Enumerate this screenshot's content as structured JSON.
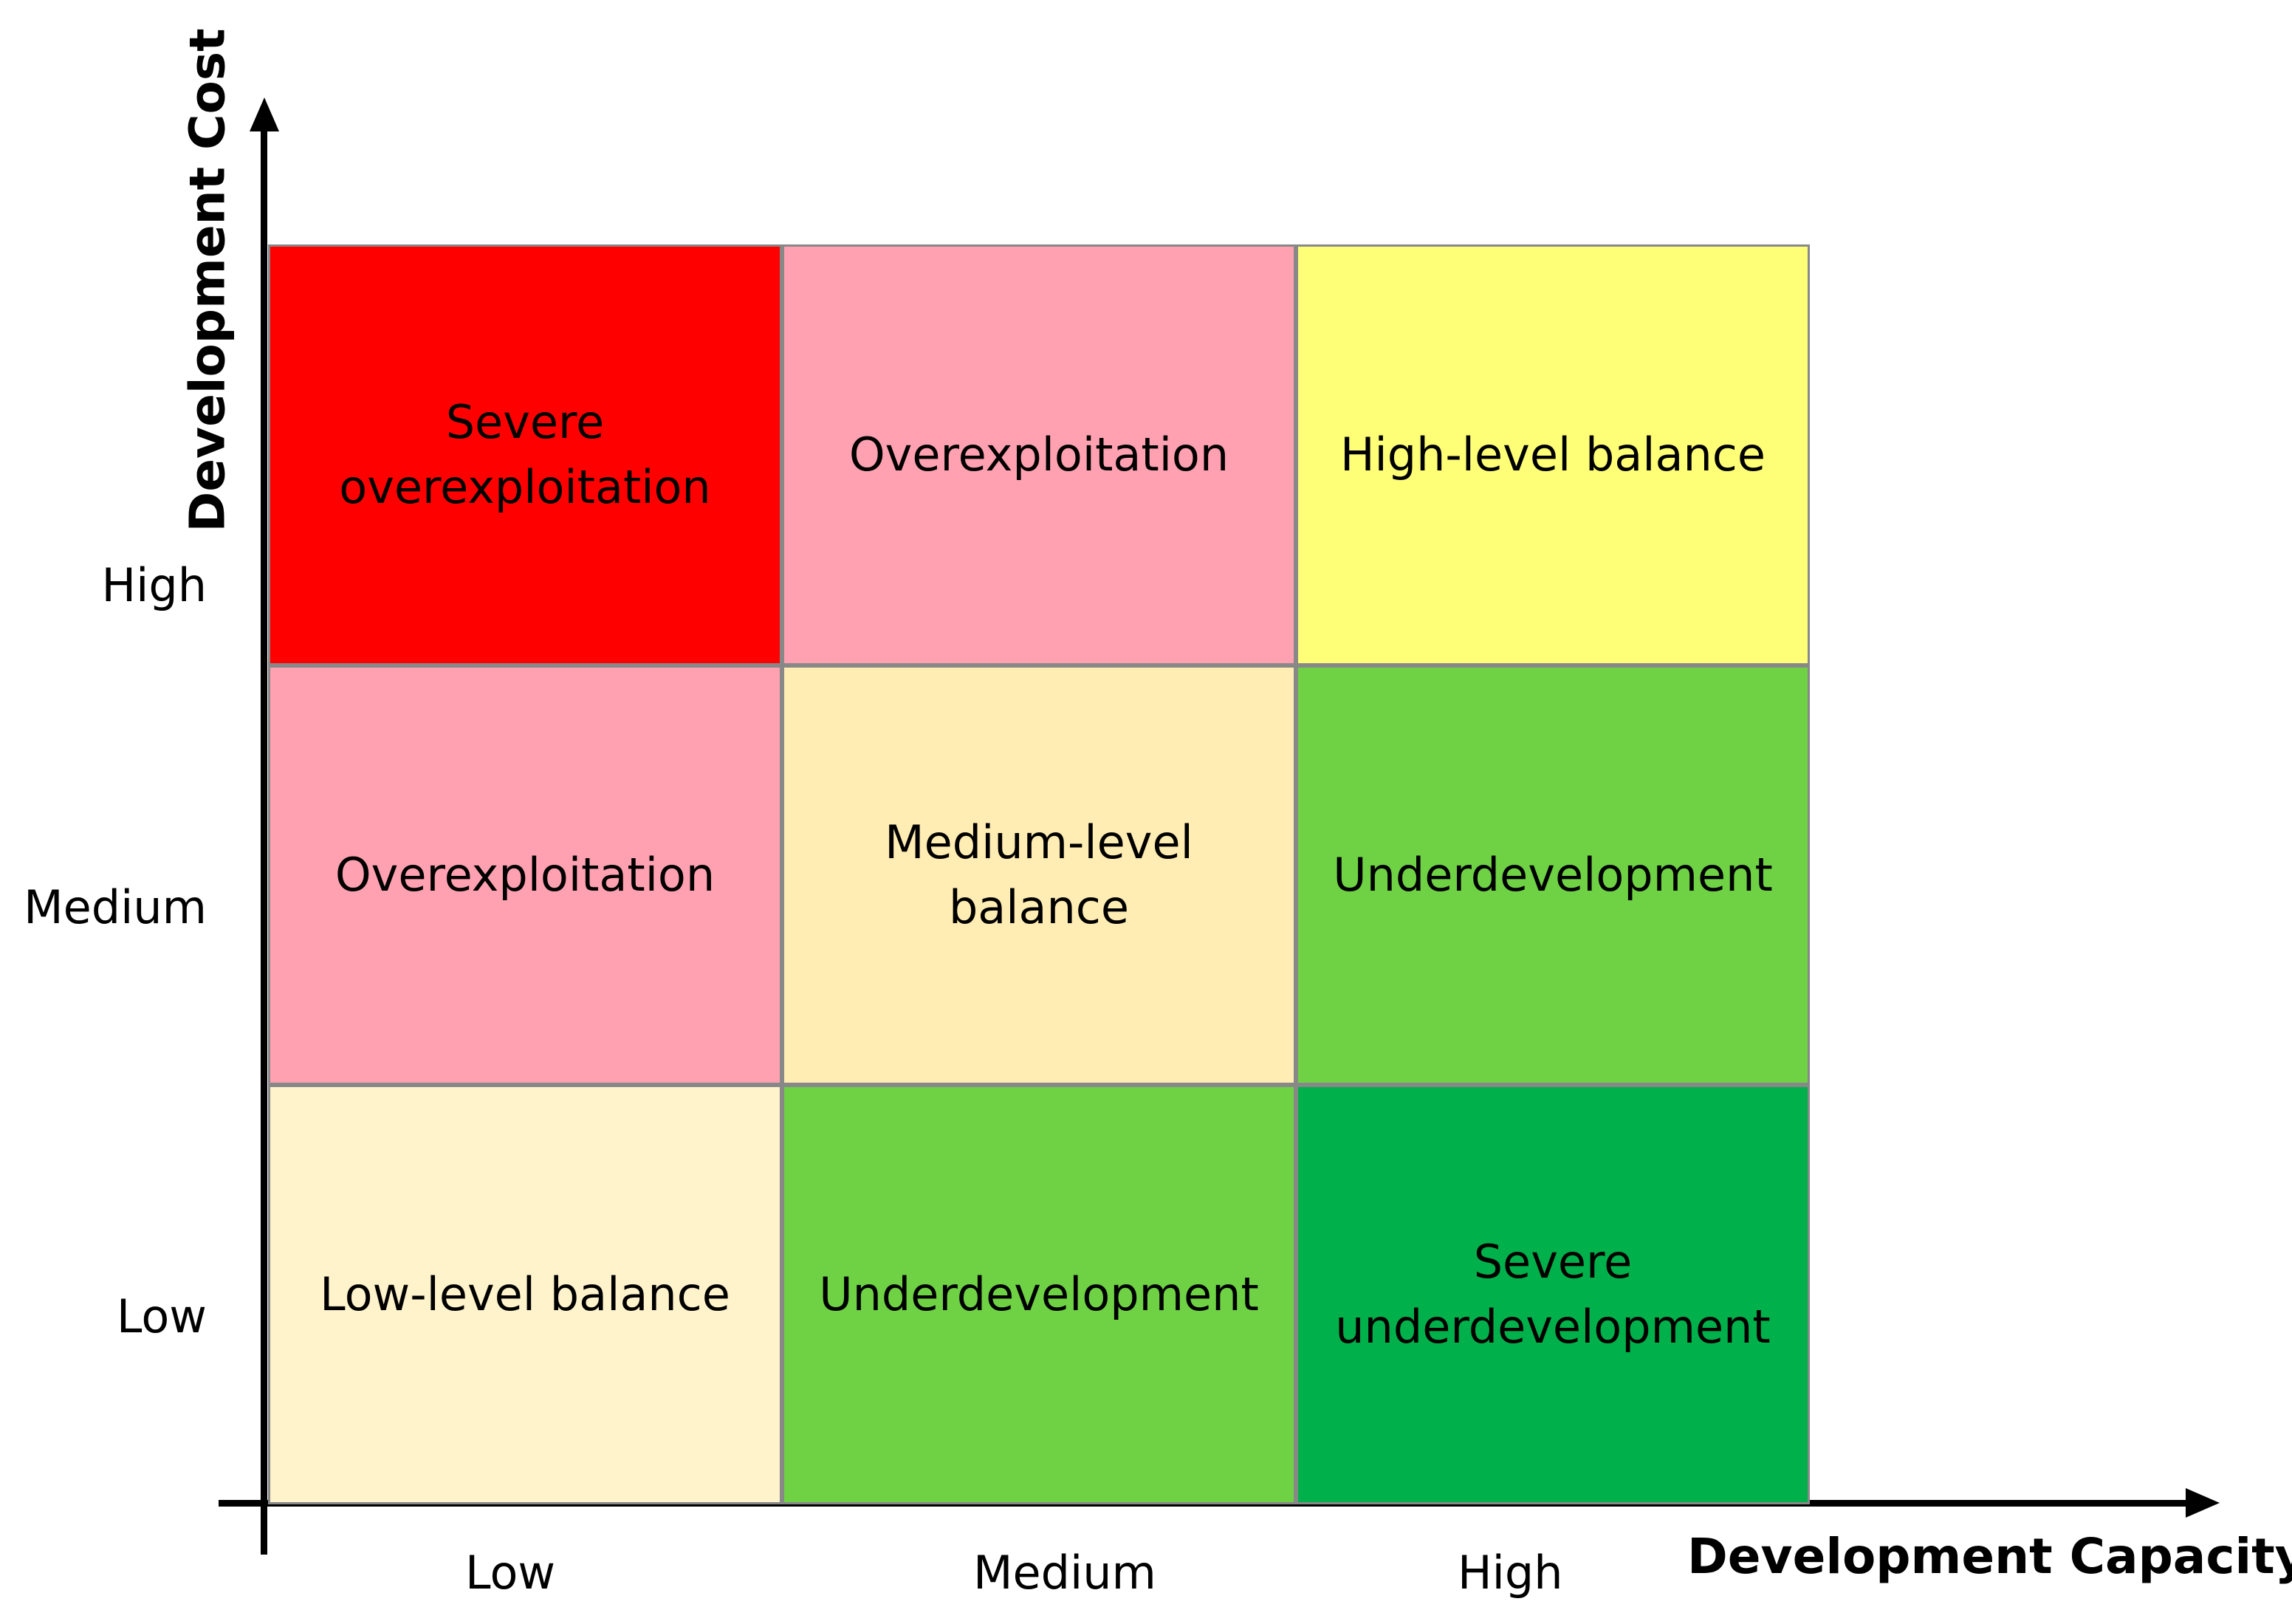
{
  "axes": {
    "y_title": "Development Cost",
    "x_title": "Development Capacity",
    "y_ticks": [
      "High",
      "Medium",
      "Low"
    ],
    "x_ticks": [
      "Low",
      "Medium",
      "High"
    ]
  },
  "cells": [
    {
      "row": "High",
      "col": "Low",
      "label": "Severe\noverexploitation",
      "color": "#FF0000"
    },
    {
      "row": "High",
      "col": "Medium",
      "label": "Overexploitation",
      "color": "#FFA1B1"
    },
    {
      "row": "High",
      "col": "High",
      "label": "High-level balance",
      "color": "#FFFF77"
    },
    {
      "row": "Medium",
      "col": "Low",
      "label": "Overexploitation",
      "color": "#FFA1B1"
    },
    {
      "row": "Medium",
      "col": "Medium",
      "label": "Medium-level\nbalance",
      "color": "#FFEDB3"
    },
    {
      "row": "Medium",
      "col": "High",
      "label": "Underdevelopment",
      "color": "#6FD245"
    },
    {
      "row": "Low",
      "col": "Low",
      "label": "Low-level balance",
      "color": "#FFF3CC"
    },
    {
      "row": "Low",
      "col": "Medium",
      "label": "Underdevelopment",
      "color": "#6FD245"
    },
    {
      "row": "Low",
      "col": "High",
      "label": "Severe\nunderdevelopment",
      "color": "#00B04A"
    }
  ]
}
